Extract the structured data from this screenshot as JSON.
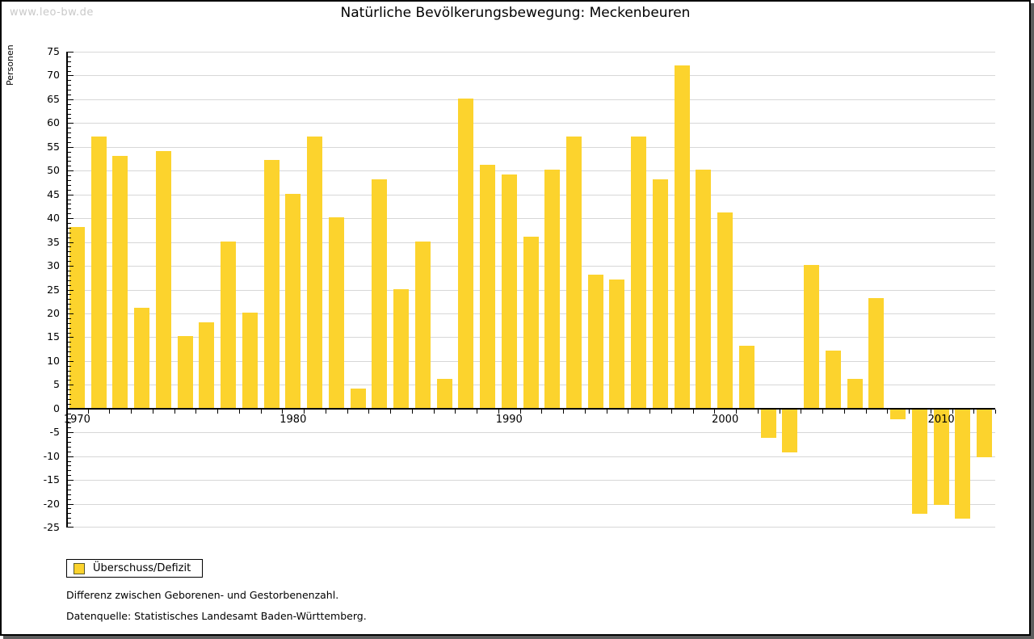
{
  "page": {
    "watermark": "www.leo-bw.de",
    "title": "Natürliche Bevölkerungsbewegung: Meckenbeuren"
  },
  "chart_data": {
    "type": "bar",
    "title": "Natürliche Bevölkerungsbewegung: Meckenbeuren",
    "ylabel": "Personen",
    "xlabel": "",
    "series_name": "Überschuss/Defizit",
    "categories": [
      1970,
      1971,
      1972,
      1973,
      1974,
      1975,
      1976,
      1977,
      1978,
      1979,
      1980,
      1981,
      1982,
      1983,
      1984,
      1985,
      1986,
      1987,
      1988,
      1989,
      1990,
      1991,
      1992,
      1993,
      1994,
      1995,
      1996,
      1997,
      1998,
      1999,
      2000,
      2001,
      2002,
      2003,
      2004,
      2005,
      2006,
      2007,
      2008,
      2009,
      2010,
      2011,
      2012
    ],
    "values": [
      38,
      57,
      53,
      21,
      54,
      15,
      18,
      35,
      20,
      52,
      45,
      57,
      40,
      4,
      48,
      25,
      35,
      6,
      65,
      51,
      49,
      36,
      50,
      57,
      28,
      27,
      57,
      48,
      72,
      50,
      41,
      13,
      -6,
      -9,
      30,
      12,
      6,
      23,
      -2,
      -22,
      -20,
      -23,
      -10
    ],
    "ylim": [
      -25,
      75
    ],
    "ytick_step": 5,
    "ytick_minor_step": 1,
    "xtick_labels": [
      "1970",
      "1980",
      "1990",
      "2000",
      "2010"
    ],
    "grid": true,
    "legend_position": "bottom-left"
  },
  "legend": {
    "label": "Überschuss/Defizit"
  },
  "footer": {
    "line1": "Differenz zwischen Geborenen- und Gestorbenenzahl.",
    "line2": "Datenquelle: Statistisches Landesamt Baden-Württemberg."
  },
  "colors": {
    "bar": "#FCD32D",
    "grid": "#D7D7D7",
    "axis": "#000000",
    "watermark": "#C9C9C9",
    "text": "#000000",
    "legend_swatch_border": "#5B5B2A",
    "frame_shadow": "#5E5E5E"
  }
}
